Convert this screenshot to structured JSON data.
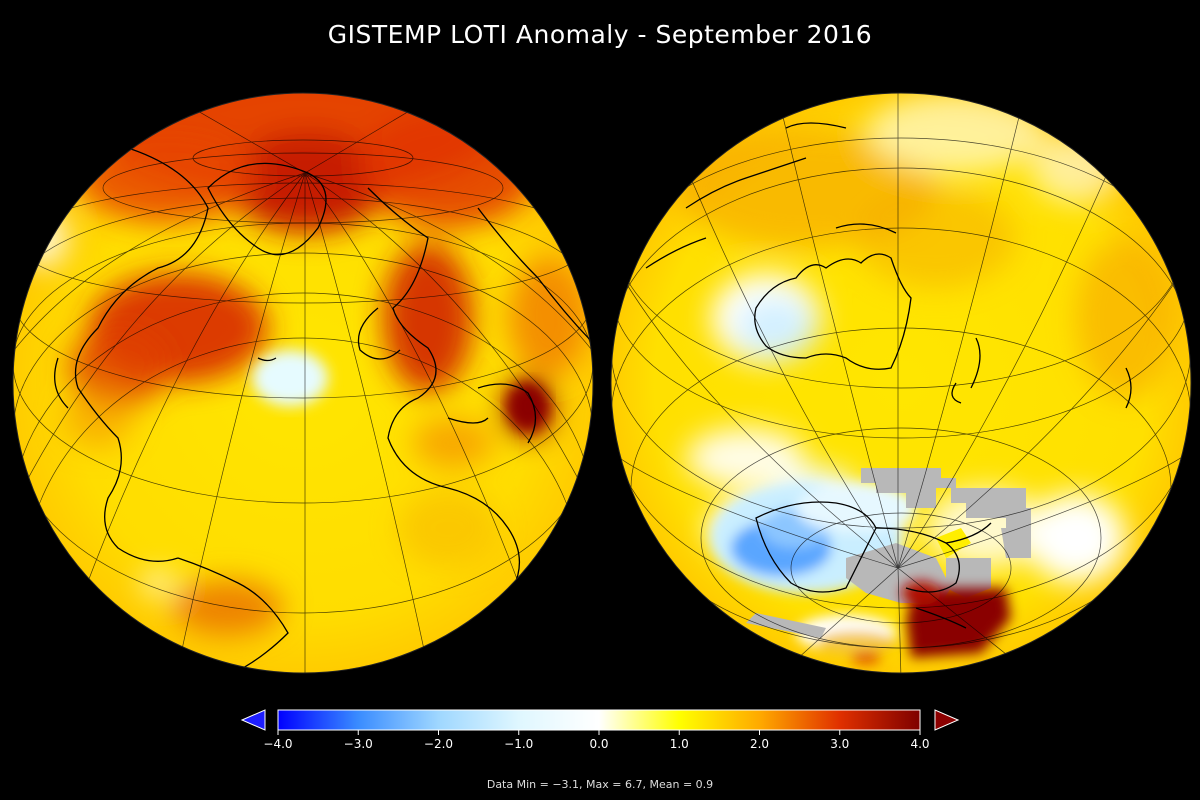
{
  "map_title": "GISTEMP LOTI Anomaly - September 2016",
  "globes": [
    {
      "name": "northern-atlantic-view",
      "center_lat": 60,
      "center_lon": -30
    },
    {
      "name": "southern-pacific-view",
      "center_lat": -60,
      "center_lon": 150
    }
  ],
  "colorbar": {
    "ticks": [
      "−4.0",
      "−3.0",
      "−2.0",
      "−1.0",
      "0.0",
      "1.0",
      "2.0",
      "3.0",
      "4.0"
    ],
    "min": -4.0,
    "max": 4.0,
    "colors": [
      "#0000ff",
      "#3a8cff",
      "#9fd7ff",
      "#dff7ff",
      "#ffffff",
      "#ffff00",
      "#ffaa00",
      "#e03000",
      "#7f0000"
    ],
    "under_color": "#1e1eff",
    "over_color": "#8b0000"
  },
  "no_data_color": "#b8b8b8",
  "data_stats": "Data Min = −3.1, Max = 6.7, Mean = 0.9"
}
